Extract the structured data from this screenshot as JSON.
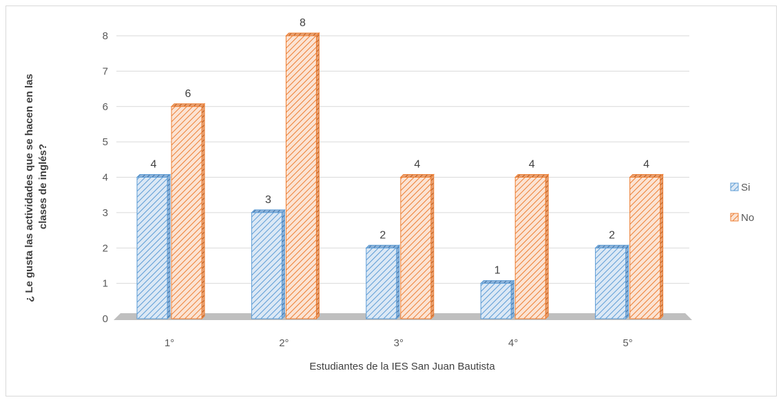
{
  "chart_data": {
    "type": "bar",
    "categories": [
      "1°",
      "2°",
      "3°",
      "4°",
      "5°"
    ],
    "series": [
      {
        "name": "Si",
        "values": [
          4,
          3,
          2,
          1,
          2
        ],
        "color": "#5b9bd5"
      },
      {
        "name": "No",
        "values": [
          6,
          8,
          4,
          4,
          4
        ],
        "color": "#ed7d31"
      }
    ],
    "xlabel": "Estudiantes de la IES San Juan Bautista",
    "ylabel_lines": [
      "¿ Le gusta las actividades que se hacen en las",
      "clases de inglés?"
    ],
    "ylim": [
      0,
      8
    ],
    "yticks": [
      "0",
      "1",
      "2",
      "3",
      "4",
      "5",
      "6",
      "7",
      "8"
    ],
    "grid": true,
    "legend_position": "right",
    "style": "3d-hatched"
  }
}
